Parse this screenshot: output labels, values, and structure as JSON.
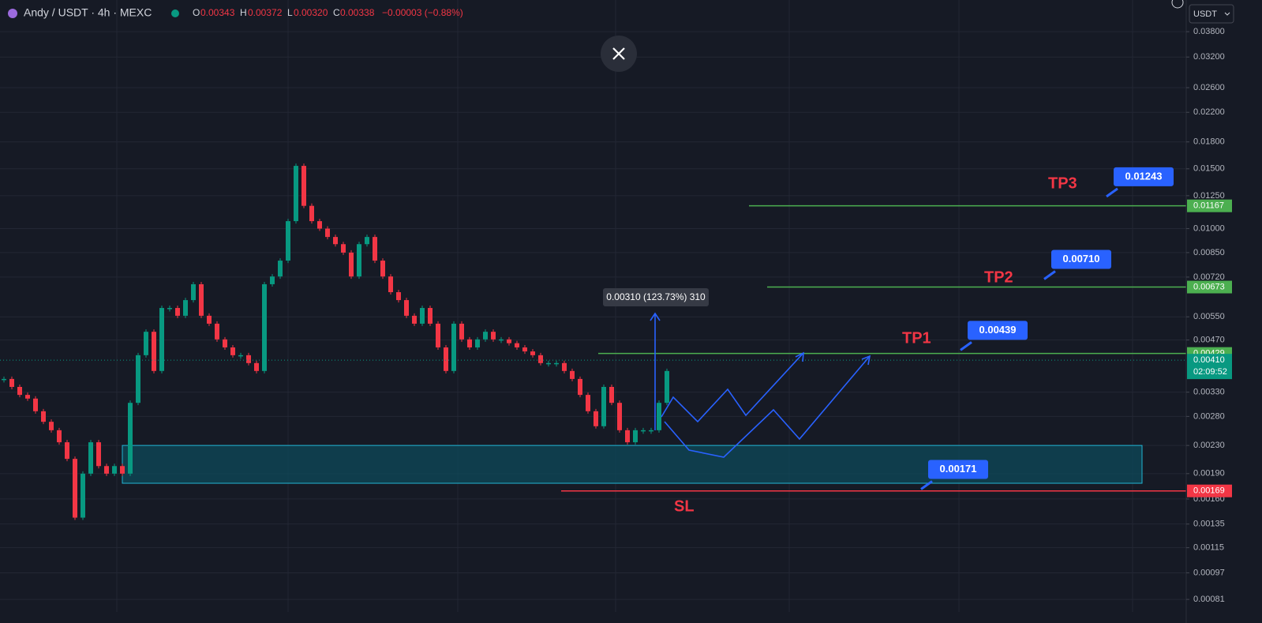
{
  "header": {
    "symbol": "Andy / USDT · 4h · MEXC",
    "ohlc": [
      {
        "key": "O",
        "value": "0.00343"
      },
      {
        "key": "H",
        "value": "0.00372"
      },
      {
        "key": "L",
        "value": "0.00320"
      },
      {
        "key": "C",
        "value": "0.00338"
      }
    ],
    "change": "−0.00003 (−0.88%)",
    "currency": "USDT"
  },
  "chart_data": {
    "type": "candlestick",
    "log_scale": true,
    "grid": true,
    "ylim": [
      0.000744,
      0.0471
    ],
    "yticks": [
      {
        "value": 0.038,
        "label": "0.03800"
      },
      {
        "value": 0.032,
        "label": "0.03200"
      },
      {
        "value": 0.026,
        "label": "0.02600"
      },
      {
        "value": 0.022,
        "label": "0.02200"
      },
      {
        "value": 0.018,
        "label": "0.01800"
      },
      {
        "value": 0.015,
        "label": "0.01500"
      },
      {
        "value": 0.0125,
        "label": "0.01250"
      },
      {
        "value": 0.01,
        "label": "0.01000"
      },
      {
        "value": 0.0085,
        "label": "0.00850"
      },
      {
        "value": 0.0072,
        "label": "0.00720"
      },
      {
        "value": 0.0055,
        "label": "0.00550"
      },
      {
        "value": 0.0047,
        "label": "0.00470"
      },
      {
        "value": 0.0033,
        "label": "0.00330"
      },
      {
        "value": 0.0028,
        "label": "0.00280"
      },
      {
        "value": 0.0023,
        "label": "0.00230"
      },
      {
        "value": 0.0019,
        "label": "0.00190"
      },
      {
        "value": 0.0016,
        "label": "0.00160"
      },
      {
        "value": 0.00135,
        "label": "0.00135"
      },
      {
        "value": 0.00115,
        "label": "0.00115"
      },
      {
        "value": 0.00097,
        "label": "0.00097"
      },
      {
        "value": 0.00081,
        "label": "0.00081"
      }
    ],
    "series": [
      {
        "name": "Andy / USDT",
        "up_color": "#089981",
        "down_color": "#f23645",
        "values": [
          0.00361,
          0.00342,
          0.00324,
          0.00316,
          0.0029,
          0.0027,
          0.00255,
          0.00235,
          0.0021,
          0.00141,
          0.0019,
          0.00235,
          0.002,
          0.0019,
          0.002,
          0.0019,
          0.00307,
          0.00424,
          0.00497,
          0.00381,
          0.00584,
          0.00584,
          0.00554,
          0.00616,
          0.00686,
          0.00554,
          0.00525,
          0.00472,
          0.00447,
          0.00424,
          0.00424,
          0.00402,
          0.00381,
          0.00686,
          0.00723,
          0.00805,
          0.01052,
          0.0153,
          0.01167,
          0.01052,
          0.01,
          0.00945,
          0.009,
          0.0085,
          0.00723,
          0.009,
          0.00945,
          0.00805,
          0.00723,
          0.0065,
          0.00616,
          0.00554,
          0.00525,
          0.00584,
          0.00525,
          0.00447,
          0.00381,
          0.00525,
          0.00472,
          0.00447,
          0.00472,
          0.00497,
          0.00472,
          0.00472,
          0.0046,
          0.00447,
          0.00435,
          0.00424,
          0.00402,
          0.00402,
          0.00402,
          0.00381,
          0.00361,
          0.00324,
          0.0029,
          0.00262,
          0.00342,
          0.00307,
          0.00255,
          0.00235,
          0.00255,
          0.00255,
          0.00255,
          0.00307,
          0.00381
        ]
      }
    ],
    "levels": [
      {
        "value": 0.01167,
        "label": "0.01167",
        "color": "#4caf50"
      },
      {
        "value": 0.00673,
        "label": "0.00673",
        "color": "#4caf50"
      },
      {
        "value": 0.00429,
        "label": "0.00429",
        "color": "#4caf50"
      },
      {
        "value": 0.0041,
        "label": "0.00410",
        "color": "#089981",
        "countdown": "02:09:52"
      },
      {
        "value": 0.00169,
        "label": "0.00169",
        "color": "#f23645"
      }
    ],
    "callouts": [
      {
        "value": 0.01243,
        "label": "0.01243"
      },
      {
        "value": 0.0071,
        "label": "0.00710"
      },
      {
        "value": 0.00439,
        "label": "0.00439"
      },
      {
        "value": 0.00171,
        "label": "0.00171"
      }
    ],
    "zone": {
      "low": 0.00178,
      "high": 0.0023
    },
    "annotations": [
      "TP3",
      "TP2",
      "TP1",
      "SL"
    ],
    "measure": "0.00310 (123.73%) 310"
  }
}
